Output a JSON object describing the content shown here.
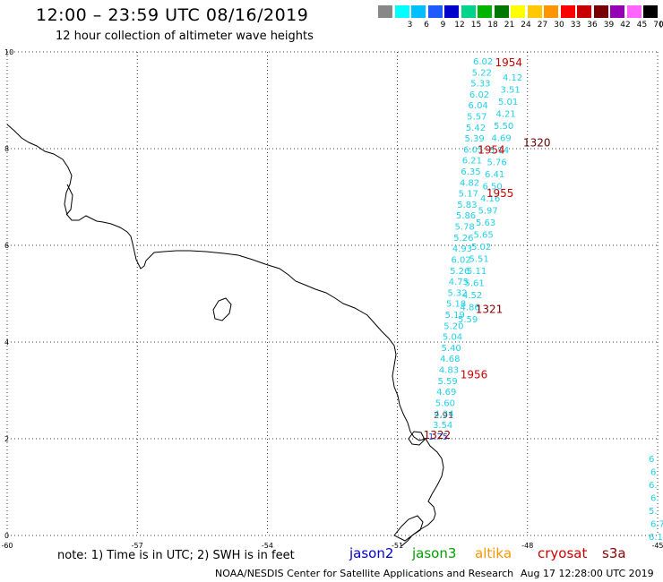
{
  "header": {
    "title": "12:00 – 23:59 UTC 08/16/2019",
    "subtitle": "12 hour collection of altimeter wave heights"
  },
  "color_scale": {
    "unit": "(ft)",
    "items": [
      {
        "label": "",
        "color": "#888888"
      },
      {
        "label": "3",
        "color": "#00ffff"
      },
      {
        "label": "6",
        "color": "#00bfff"
      },
      {
        "label": "9",
        "color": "#1e5aff"
      },
      {
        "label": "12",
        "color": "#0000cc"
      },
      {
        "label": "15",
        "color": "#00d48a"
      },
      {
        "label": "18",
        "color": "#00b400"
      },
      {
        "label": "21",
        "color": "#007800"
      },
      {
        "label": "24",
        "color": "#ffff00"
      },
      {
        "label": "27",
        "color": "#ffc800"
      },
      {
        "label": "30",
        "color": "#ff9600"
      },
      {
        "label": "33",
        "color": "#ff0000"
      },
      {
        "label": "36",
        "color": "#c80000"
      },
      {
        "label": "39",
        "color": "#780000"
      },
      {
        "label": "42",
        "color": "#9600b4"
      },
      {
        "label": "45",
        "color": "#ff64ff"
      },
      {
        "label": "70",
        "color": "#000000"
      }
    ]
  },
  "map": {
    "lon_range": [
      -60,
      -45
    ],
    "lat_range": [
      0,
      10
    ],
    "x_ticks": [
      "-60",
      "-57",
      "-54",
      "-51",
      "-48",
      "-45"
    ],
    "y_ticks": [
      "0",
      "2",
      "4",
      "6",
      "8",
      "10"
    ],
    "track_labels": [
      {
        "text": "1954",
        "lon": -48.75,
        "lat": 9.7
      },
      {
        "text": "1320",
        "lon": -48.1,
        "lat": 8.05
      },
      {
        "text": "1954",
        "lon": -49.15,
        "lat": 7.9
      },
      {
        "text": "1955",
        "lon": -48.95,
        "lat": 7.0
      },
      {
        "text": "1321",
        "lon": -49.2,
        "lat": 4.6
      },
      {
        "text": "1956",
        "lon": -49.55,
        "lat": 3.25
      },
      {
        "text": "1322",
        "lon": -50.4,
        "lat": 2.0
      }
    ],
    "swh_cyan_column": [
      "6.02",
      "5.22",
      "5.33",
      "6.02",
      "6.04",
      "5.57",
      "5.42",
      "5.39",
      "6.05",
      "6.21",
      "6.35",
      "4.82",
      "5.17",
      "5.83",
      "5.86",
      "5.78",
      "5.26",
      "4.93",
      "6.02",
      "5.26",
      "4.75",
      "5.32",
      "5.18",
      "5.19",
      "5.20",
      "5.04",
      "5.40",
      "4.68",
      "4.83",
      "5.59",
      "4.69",
      "5.60",
      "4.34",
      "3.54"
    ],
    "swh_cyan_right": [
      "4.12",
      "3.51",
      "5.01",
      "4.21",
      "5.50",
      "4.69",
      "5.14",
      "5.76",
      "6.41",
      "6.50",
      "4.16",
      "5.97",
      "5.63",
      "5.65",
      "5.02",
      "5.51",
      "5.11",
      "5.61",
      "4.52",
      "4.86",
      "5.59"
    ],
    "swh_gray": [
      "2.91"
    ],
    "swh_blue": [
      "1.75"
    ],
    "swh_edge": [
      "6",
      "6",
      "6.",
      "6.",
      "5.",
      "6.7",
      "6.1"
    ]
  },
  "footer": {
    "note": "note: 1) Time is in UTC; 2) SWH is in feet",
    "satellites": [
      {
        "name": "jason2",
        "color": "#0000cc"
      },
      {
        "name": "jason3",
        "color": "#00a000"
      },
      {
        "name": "altika",
        "color": "#ff9600"
      },
      {
        "name": "cryosat",
        "color": "#cc0000"
      },
      {
        "name": "s3a",
        "color": "#880000"
      }
    ],
    "credit": "NOAA/NESDIS Center for Satellite Applications and Research",
    "timestamp": "Aug 17 12:28:00 UTC 2019"
  }
}
